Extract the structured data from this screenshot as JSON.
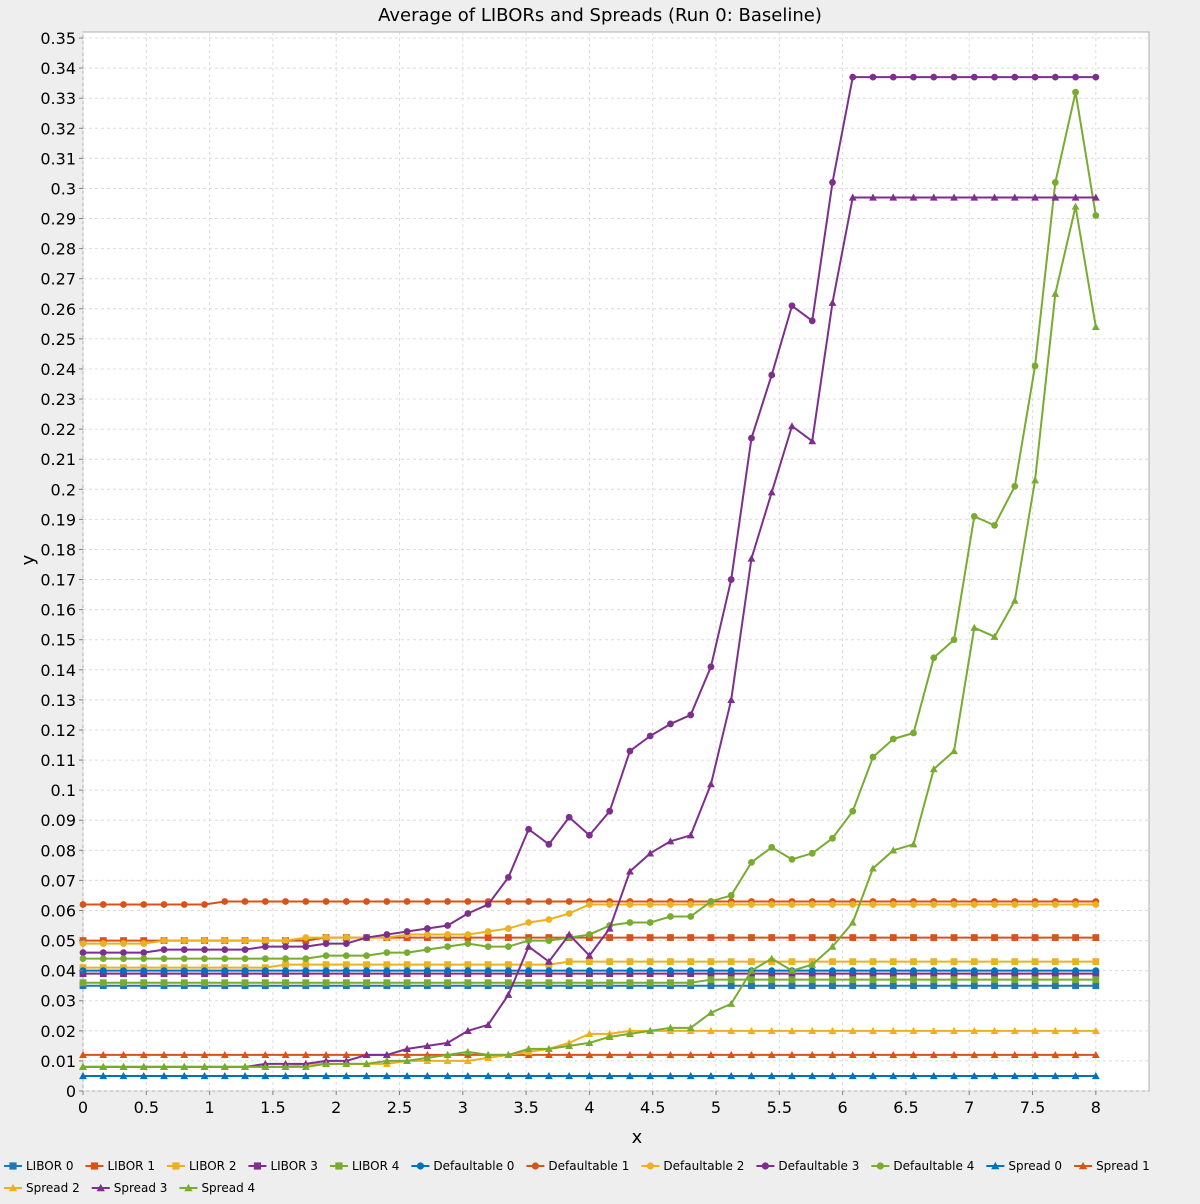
{
  "chart_data": {
    "type": "line",
    "title": "Average of LIBORs and Spreads (Run 0: Baseline)",
    "xlabel": "x",
    "ylabel": "y",
    "xlim": [
      0,
      8.42
    ],
    "ylim": [
      0,
      0.352
    ],
    "x_ticks": [
      "0",
      "0.5",
      "1",
      "1.5",
      "2",
      "2.5",
      "3",
      "3.5",
      "4",
      "4.5",
      "5",
      "5.5",
      "6",
      "6.5",
      "7",
      "7.5",
      "8"
    ],
    "x_tick_values": [
      0,
      0.5,
      1,
      1.5,
      2,
      2.5,
      3,
      3.5,
      4,
      4.5,
      5,
      5.5,
      6,
      6.5,
      7,
      7.5,
      8
    ],
    "y_ticks": [
      "0",
      "0.01",
      "0.02",
      "0.03",
      "0.04",
      "0.05",
      "0.06",
      "0.07",
      "0.08",
      "0.09",
      "0.1",
      "0.11",
      "0.12",
      "0.13",
      "0.14",
      "0.15",
      "0.16",
      "0.17",
      "0.18",
      "0.19",
      "0.2",
      "0.21",
      "0.22",
      "0.23",
      "0.24",
      "0.25",
      "0.26",
      "0.27",
      "0.28",
      "0.29",
      "0.3",
      "0.31",
      "0.32",
      "0.33",
      "0.34",
      "0.35"
    ],
    "y_tick_values": [
      0,
      0.01,
      0.02,
      0.03,
      0.04,
      0.05,
      0.06,
      0.07,
      0.08,
      0.09,
      0.1,
      0.11,
      0.12,
      0.13,
      0.14,
      0.15,
      0.16,
      0.17,
      0.18,
      0.19,
      0.2,
      0.21,
      0.22,
      0.23,
      0.24,
      0.25,
      0.26,
      0.27,
      0.28,
      0.29,
      0.3,
      0.31,
      0.32,
      0.33,
      0.34,
      0.35
    ],
    "grid": true,
    "legend_position": "bottom",
    "x": [
      0,
      0.16,
      0.32,
      0.48,
      0.64,
      0.8,
      0.96,
      1.12,
      1.28,
      1.44,
      1.6,
      1.76,
      1.92,
      2.08,
      2.24,
      2.4,
      2.56,
      2.72,
      2.88,
      3.04,
      3.2,
      3.36,
      3.52,
      3.68,
      3.84,
      4.0,
      4.16,
      4.32,
      4.48,
      4.64,
      4.8,
      4.96,
      5.12,
      5.28,
      5.44,
      5.6,
      5.76,
      5.92,
      6.08,
      6.24,
      6.4,
      6.56,
      6.72,
      6.88,
      7.04,
      7.2,
      7.36,
      7.52,
      7.68,
      7.84,
      8.0
    ],
    "series": [
      {
        "name": "LIBOR 0",
        "color": "#1F77B4",
        "marker": "square",
        "values": [
          0.035,
          0.035,
          0.035,
          0.035,
          0.035,
          0.035,
          0.035,
          0.035,
          0.035,
          0.035,
          0.035,
          0.035,
          0.035,
          0.035,
          0.035,
          0.035,
          0.035,
          0.035,
          0.035,
          0.035,
          0.035,
          0.035,
          0.035,
          0.035,
          0.035,
          0.035,
          0.035,
          0.035,
          0.035,
          0.035,
          0.035,
          0.035,
          0.035,
          0.035,
          0.035,
          0.035,
          0.035,
          0.035,
          0.035,
          0.035,
          0.035,
          0.035,
          0.035,
          0.035,
          0.035,
          0.035,
          0.035,
          0.035,
          0.035,
          0.035,
          0.035
        ]
      },
      {
        "name": "LIBOR 1",
        "color": "#D95319",
        "marker": "square",
        "values": [
          0.05,
          0.05,
          0.05,
          0.05,
          0.05,
          0.05,
          0.05,
          0.05,
          0.05,
          0.05,
          0.05,
          0.05,
          0.051,
          0.051,
          0.051,
          0.051,
          0.051,
          0.051,
          0.051,
          0.051,
          0.051,
          0.051,
          0.051,
          0.051,
          0.051,
          0.051,
          0.051,
          0.051,
          0.051,
          0.051,
          0.051,
          0.051,
          0.051,
          0.051,
          0.051,
          0.051,
          0.051,
          0.051,
          0.051,
          0.051,
          0.051,
          0.051,
          0.051,
          0.051,
          0.051,
          0.051,
          0.051,
          0.051,
          0.051,
          0.051,
          0.051
        ]
      },
      {
        "name": "LIBOR 2",
        "color": "#EDB120",
        "marker": "square",
        "values": [
          0.041,
          0.041,
          0.041,
          0.041,
          0.041,
          0.041,
          0.041,
          0.041,
          0.041,
          0.041,
          0.042,
          0.042,
          0.042,
          0.042,
          0.042,
          0.042,
          0.042,
          0.042,
          0.042,
          0.042,
          0.042,
          0.042,
          0.042,
          0.042,
          0.043,
          0.043,
          0.043,
          0.043,
          0.043,
          0.043,
          0.043,
          0.043,
          0.043,
          0.043,
          0.043,
          0.043,
          0.043,
          0.043,
          0.043,
          0.043,
          0.043,
          0.043,
          0.043,
          0.043,
          0.043,
          0.043,
          0.043,
          0.043,
          0.043,
          0.043,
          0.043
        ]
      },
      {
        "name": "LIBOR 3",
        "color": "#7E2F8E",
        "marker": "square",
        "values": [
          0.039,
          0.039,
          0.039,
          0.039,
          0.039,
          0.039,
          0.039,
          0.039,
          0.039,
          0.039,
          0.039,
          0.039,
          0.039,
          0.039,
          0.039,
          0.039,
          0.039,
          0.039,
          0.039,
          0.039,
          0.039,
          0.039,
          0.039,
          0.039,
          0.039,
          0.039,
          0.039,
          0.039,
          0.039,
          0.039,
          0.039,
          0.039,
          0.039,
          0.039,
          0.039,
          0.039,
          0.039,
          0.039,
          0.039,
          0.039,
          0.039,
          0.039,
          0.039,
          0.039,
          0.039,
          0.039,
          0.039,
          0.039,
          0.039,
          0.039,
          0.039
        ]
      },
      {
        "name": "LIBOR 4",
        "color": "#77AC30",
        "marker": "square",
        "values": [
          0.036,
          0.036,
          0.036,
          0.036,
          0.036,
          0.036,
          0.036,
          0.036,
          0.036,
          0.036,
          0.036,
          0.036,
          0.036,
          0.036,
          0.036,
          0.036,
          0.036,
          0.036,
          0.036,
          0.036,
          0.036,
          0.036,
          0.036,
          0.036,
          0.036,
          0.036,
          0.036,
          0.036,
          0.036,
          0.036,
          0.036,
          0.037,
          0.037,
          0.037,
          0.037,
          0.037,
          0.037,
          0.037,
          0.037,
          0.037,
          0.037,
          0.037,
          0.037,
          0.037,
          0.037,
          0.037,
          0.037,
          0.037,
          0.037,
          0.037,
          0.037
        ]
      },
      {
        "name": "Defaultable 0",
        "color": "#0072BD",
        "marker": "circle",
        "values": [
          0.04,
          0.04,
          0.04,
          0.04,
          0.04,
          0.04,
          0.04,
          0.04,
          0.04,
          0.04,
          0.04,
          0.04,
          0.04,
          0.04,
          0.04,
          0.04,
          0.04,
          0.04,
          0.04,
          0.04,
          0.04,
          0.04,
          0.04,
          0.04,
          0.04,
          0.04,
          0.04,
          0.04,
          0.04,
          0.04,
          0.04,
          0.04,
          0.04,
          0.04,
          0.04,
          0.04,
          0.04,
          0.04,
          0.04,
          0.04,
          0.04,
          0.04,
          0.04,
          0.04,
          0.04,
          0.04,
          0.04,
          0.04,
          0.04,
          0.04,
          0.04
        ]
      },
      {
        "name": "Defaultable 1",
        "color": "#D95319",
        "marker": "circle",
        "values": [
          0.062,
          0.062,
          0.062,
          0.062,
          0.062,
          0.062,
          0.062,
          0.063,
          0.063,
          0.063,
          0.063,
          0.063,
          0.063,
          0.063,
          0.063,
          0.063,
          0.063,
          0.063,
          0.063,
          0.063,
          0.063,
          0.063,
          0.063,
          0.063,
          0.063,
          0.063,
          0.063,
          0.063,
          0.063,
          0.063,
          0.063,
          0.063,
          0.063,
          0.063,
          0.063,
          0.063,
          0.063,
          0.063,
          0.063,
          0.063,
          0.063,
          0.063,
          0.063,
          0.063,
          0.063,
          0.063,
          0.063,
          0.063,
          0.063,
          0.063,
          0.063
        ]
      },
      {
        "name": "Defaultable 2",
        "color": "#EDB120",
        "marker": "circle",
        "values": [
          0.049,
          0.049,
          0.049,
          0.049,
          0.05,
          0.05,
          0.05,
          0.05,
          0.05,
          0.05,
          0.05,
          0.051,
          0.051,
          0.051,
          0.051,
          0.051,
          0.052,
          0.052,
          0.052,
          0.052,
          0.053,
          0.054,
          0.056,
          0.057,
          0.059,
          0.062,
          0.062,
          0.062,
          0.062,
          0.062,
          0.062,
          0.062,
          0.062,
          0.062,
          0.062,
          0.062,
          0.062,
          0.062,
          0.062,
          0.062,
          0.062,
          0.062,
          0.062,
          0.062,
          0.062,
          0.062,
          0.062,
          0.062,
          0.062,
          0.062,
          0.062
        ]
      },
      {
        "name": "Defaultable 3",
        "color": "#7E2F8E",
        "marker": "circle",
        "values": [
          0.046,
          0.046,
          0.046,
          0.046,
          0.047,
          0.047,
          0.047,
          0.047,
          0.047,
          0.048,
          0.048,
          0.048,
          0.049,
          0.049,
          0.051,
          0.052,
          0.053,
          0.054,
          0.055,
          0.059,
          0.062,
          0.071,
          0.087,
          0.082,
          0.091,
          0.085,
          0.093,
          0.113,
          0.118,
          0.122,
          0.125,
          0.141,
          0.17,
          0.217,
          0.238,
          0.261,
          0.256,
          0.302,
          0.337,
          0.337,
          0.337,
          0.337,
          0.337,
          0.337,
          0.337,
          0.337,
          0.337,
          0.337,
          0.337,
          0.337,
          0.337
        ]
      },
      {
        "name": "Defaultable 4",
        "color": "#77AC30",
        "marker": "circle",
        "values": [
          0.044,
          0.044,
          0.044,
          0.044,
          0.044,
          0.044,
          0.044,
          0.044,
          0.044,
          0.044,
          0.044,
          0.044,
          0.045,
          0.045,
          0.045,
          0.046,
          0.046,
          0.047,
          0.048,
          0.049,
          0.048,
          0.048,
          0.05,
          0.05,
          0.051,
          0.052,
          0.055,
          0.056,
          0.056,
          0.058,
          0.058,
          0.063,
          0.065,
          0.076,
          0.081,
          0.077,
          0.079,
          0.084,
          0.093,
          0.111,
          0.117,
          0.119,
          0.144,
          0.15,
          0.191,
          0.188,
          0.201,
          0.241,
          0.302,
          0.332,
          0.291
        ]
      },
      {
        "name": "Spread 0",
        "color": "#0072BD",
        "marker": "triangle",
        "values": [
          0.005,
          0.005,
          0.005,
          0.005,
          0.005,
          0.005,
          0.005,
          0.005,
          0.005,
          0.005,
          0.005,
          0.005,
          0.005,
          0.005,
          0.005,
          0.005,
          0.005,
          0.005,
          0.005,
          0.005,
          0.005,
          0.005,
          0.005,
          0.005,
          0.005,
          0.005,
          0.005,
          0.005,
          0.005,
          0.005,
          0.005,
          0.005,
          0.005,
          0.005,
          0.005,
          0.005,
          0.005,
          0.005,
          0.005,
          0.005,
          0.005,
          0.005,
          0.005,
          0.005,
          0.005,
          0.005,
          0.005,
          0.005,
          0.005,
          0.005,
          0.005
        ]
      },
      {
        "name": "Spread 1",
        "color": "#D95319",
        "marker": "triangle",
        "values": [
          0.012,
          0.012,
          0.012,
          0.012,
          0.012,
          0.012,
          0.012,
          0.012,
          0.012,
          0.012,
          0.012,
          0.012,
          0.012,
          0.012,
          0.012,
          0.012,
          0.012,
          0.012,
          0.012,
          0.012,
          0.012,
          0.012,
          0.012,
          0.012,
          0.012,
          0.012,
          0.012,
          0.012,
          0.012,
          0.012,
          0.012,
          0.012,
          0.012,
          0.012,
          0.012,
          0.012,
          0.012,
          0.012,
          0.012,
          0.012,
          0.012,
          0.012,
          0.012,
          0.012,
          0.012,
          0.012,
          0.012,
          0.012,
          0.012,
          0.012,
          0.012
        ]
      },
      {
        "name": "Spread 2",
        "color": "#EDB120",
        "marker": "triangle",
        "values": [
          0.008,
          0.008,
          0.008,
          0.008,
          0.008,
          0.008,
          0.008,
          0.008,
          0.008,
          0.008,
          0.008,
          0.009,
          0.009,
          0.009,
          0.009,
          0.009,
          0.01,
          0.01,
          0.01,
          0.01,
          0.011,
          0.012,
          0.013,
          0.014,
          0.016,
          0.019,
          0.019,
          0.02,
          0.02,
          0.02,
          0.02,
          0.02,
          0.02,
          0.02,
          0.02,
          0.02,
          0.02,
          0.02,
          0.02,
          0.02,
          0.02,
          0.02,
          0.02,
          0.02,
          0.02,
          0.02,
          0.02,
          0.02,
          0.02,
          0.02,
          0.02
        ]
      },
      {
        "name": "Spread 3",
        "color": "#7E2F8E",
        "marker": "triangle",
        "values": [
          0.008,
          0.008,
          0.008,
          0.008,
          0.008,
          0.008,
          0.008,
          0.008,
          0.008,
          0.009,
          0.009,
          0.009,
          0.01,
          0.01,
          0.012,
          0.012,
          0.014,
          0.015,
          0.016,
          0.02,
          0.022,
          0.032,
          0.048,
          0.043,
          0.052,
          0.045,
          0.054,
          0.073,
          0.079,
          0.083,
          0.085,
          0.102,
          0.13,
          0.177,
          0.199,
          0.221,
          0.216,
          0.262,
          0.297,
          0.297,
          0.297,
          0.297,
          0.297,
          0.297,
          0.297,
          0.297,
          0.297,
          0.297,
          0.297,
          0.297,
          0.297
        ]
      },
      {
        "name": "Spread 4",
        "color": "#77AC30",
        "marker": "triangle",
        "values": [
          0.008,
          0.008,
          0.008,
          0.008,
          0.008,
          0.008,
          0.008,
          0.008,
          0.008,
          0.008,
          0.008,
          0.008,
          0.009,
          0.009,
          0.009,
          0.01,
          0.01,
          0.011,
          0.012,
          0.013,
          0.012,
          0.012,
          0.014,
          0.014,
          0.015,
          0.016,
          0.018,
          0.019,
          0.02,
          0.021,
          0.021,
          0.026,
          0.029,
          0.04,
          0.044,
          0.04,
          0.042,
          0.048,
          0.056,
          0.074,
          0.08,
          0.082,
          0.107,
          0.113,
          0.154,
          0.151,
          0.163,
          0.203,
          0.265,
          0.294,
          0.254
        ]
      }
    ]
  }
}
